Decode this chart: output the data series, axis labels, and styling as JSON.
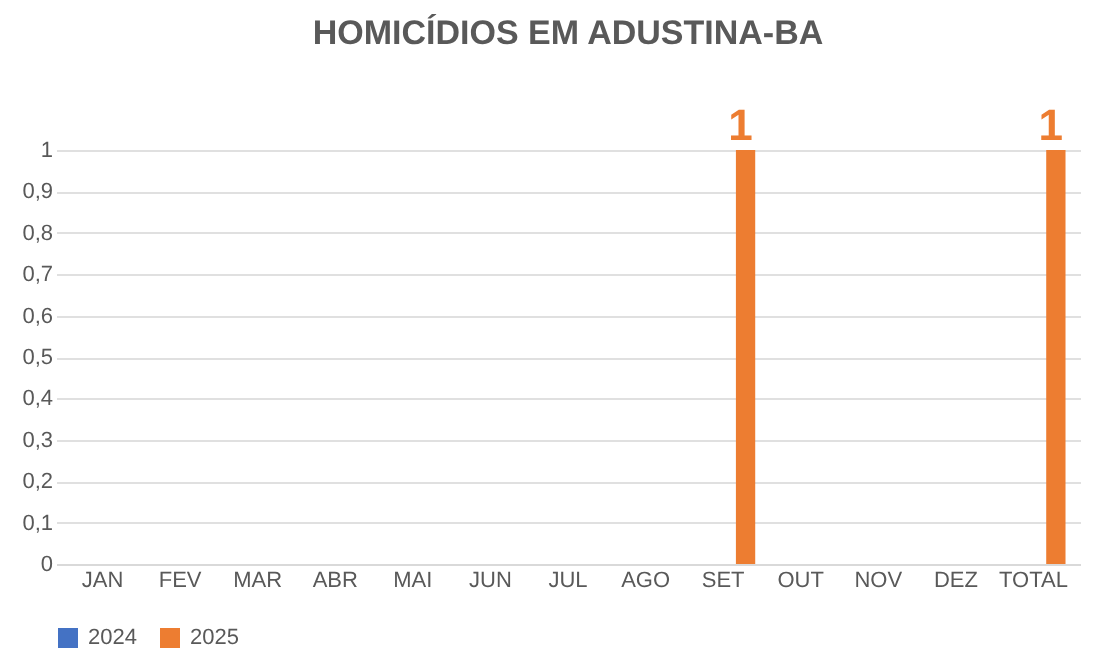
{
  "chart_data": {
    "type": "bar",
    "title": "HOMICÍDIOS EM ADUSTINA-BA",
    "categories": [
      "JAN",
      "FEV",
      "MAR",
      "ABR",
      "MAI",
      "JUN",
      "JUL",
      "AGO",
      "SET",
      "OUT",
      "NOV",
      "DEZ",
      "TOTAL"
    ],
    "series": [
      {
        "name": "2024",
        "color": "#4472c4",
        "values": [
          0,
          0,
          0,
          0,
          0,
          0,
          0,
          0,
          0,
          0,
          0,
          0,
          0
        ]
      },
      {
        "name": "2025",
        "color": "#ed7d31",
        "values": [
          0,
          0,
          0,
          0,
          0,
          0,
          0,
          0,
          1,
          0,
          0,
          0,
          1
        ],
        "value_labels": [
          null,
          null,
          null,
          null,
          null,
          null,
          null,
          null,
          "1",
          null,
          null,
          null,
          "1"
        ]
      }
    ],
    "ylim": [
      0,
      1
    ],
    "yticks": [
      0,
      {
        "value": 0.1,
        "label": "0,1"
      },
      {
        "value": 0.2,
        "label": "0,2"
      },
      {
        "value": 0.3,
        "label": "0,3"
      },
      {
        "value": 0.4,
        "label": "0,4"
      },
      {
        "value": 0.5,
        "label": "0,5"
      },
      {
        "value": 0.6,
        "label": "0,6"
      },
      {
        "value": 0.7,
        "label": "0,7"
      },
      {
        "value": 0.8,
        "label": "0,8"
      },
      {
        "value": 0.9,
        "label": "0,9"
      },
      1
    ],
    "grid": "y",
    "legend": "bottom"
  }
}
